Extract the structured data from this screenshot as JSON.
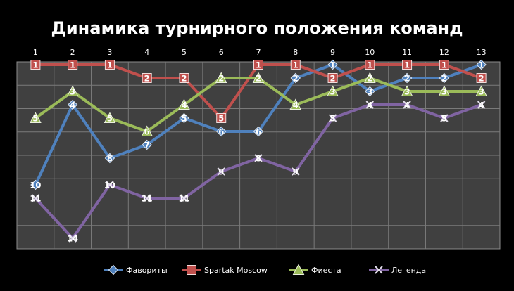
{
  "chart_data": {
    "type": "line",
    "title": "Динамика турнирного положения команд",
    "xlabel": "",
    "ylabel": "",
    "x": [
      "1",
      "2",
      "3",
      "4",
      "5",
      "6",
      "7",
      "8",
      "9",
      "10",
      "11",
      "12",
      "13"
    ],
    "x_axis_position": "top",
    "y_reversed": true,
    "ylim": [
      1,
      15
    ],
    "grid": true,
    "legend_position": "bottom",
    "series": [
      {
        "name": "Фавориты",
        "color": "#4f81bd",
        "marker": "diamond",
        "values": [
          10,
          4,
          8,
          7,
          5,
          6,
          6,
          2,
          1,
          3,
          2,
          2,
          1
        ]
      },
      {
        "name": "Spartak Moscow",
        "color": "#c0504d",
        "marker": "square",
        "values": [
          1,
          1,
          1,
          2,
          2,
          5,
          1,
          1,
          2,
          1,
          1,
          1,
          2
        ]
      },
      {
        "name": "Фиеста",
        "color": "#9bbb59",
        "marker": "triangle",
        "values": [
          5,
          3,
          5,
          6,
          4,
          2,
          2,
          4,
          3,
          2,
          3,
          3,
          3
        ]
      },
      {
        "name": "Легенда",
        "color": "#8064a2",
        "marker": "x",
        "values": [
          11,
          14,
          10,
          11,
          11,
          9,
          8,
          9,
          5,
          4,
          4,
          5,
          4
        ]
      }
    ]
  }
}
